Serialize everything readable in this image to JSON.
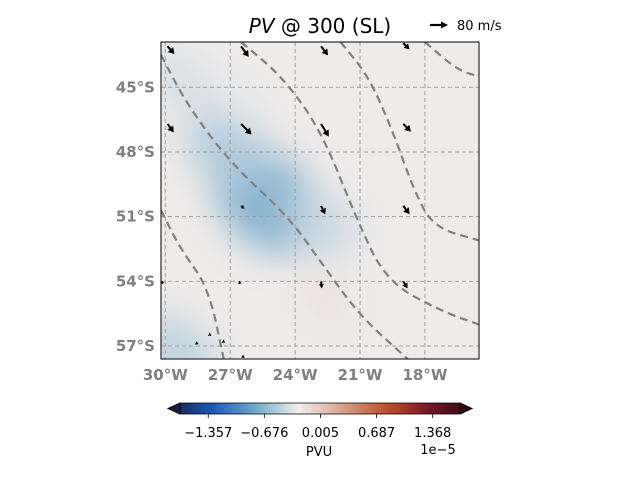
{
  "chart_data": {
    "type": "heatmap",
    "title_var": "PV",
    "title_rest": " @ 300 (SL)",
    "reference_vector": {
      "label": "80 m/s"
    },
    "xlim": [
      -30.2,
      -15.5
    ],
    "ylim": [
      -57.6,
      -42.9
    ],
    "x_ticks": [
      {
        "value": -30,
        "label": "30°W"
      },
      {
        "value": -27,
        "label": "27°W"
      },
      {
        "value": -24,
        "label": "24°W"
      },
      {
        "value": -21,
        "label": "21°W"
      },
      {
        "value": -18,
        "label": "18°W"
      }
    ],
    "y_ticks": [
      {
        "value": -45,
        "label": "45°S"
      },
      {
        "value": -48,
        "label": "48°S"
      },
      {
        "value": -51,
        "label": "51°S"
      },
      {
        "value": -54,
        "label": "54°S"
      },
      {
        "value": -57,
        "label": "57°S"
      }
    ],
    "grid": true,
    "colorbar": {
      "label": "PVU",
      "scale_label": "1e−5",
      "ticks": [
        "−1.357",
        "−0.676",
        "0.005",
        "0.687",
        "1.368"
      ],
      "tick_values": [
        -1.357,
        -0.676,
        0.005,
        0.687,
        1.368
      ],
      "range": [
        -1.7,
        1.7
      ],
      "extend": "both",
      "colors": [
        "#1a1a4a",
        "#1a57b8",
        "#6fa7c9",
        "#f2efee",
        "#d9a190",
        "#c0512b",
        "#7a1428",
        "#2b0a10"
      ]
    },
    "pv_anomalies": [
      {
        "lon": -25.2,
        "lat": -50.3,
        "value": -0.72
      },
      {
        "lon": -27.0,
        "lat": -48.0,
        "value": -0.5
      },
      {
        "lon": -22.8,
        "lat": -51.3,
        "value": -0.4
      },
      {
        "lon": -26.5,
        "lat": -45.5,
        "value": -0.28
      },
      {
        "lon": -29.3,
        "lat": -44.8,
        "value": -0.35
      },
      {
        "lon": -29.5,
        "lat": -57.3,
        "value": -0.45
      },
      {
        "lon": -22.5,
        "lat": -54.8,
        "value": -0.12
      }
    ],
    "contours": [
      [
        [
          -30.2,
          -43.5
        ],
        [
          -29.0,
          -45.8
        ],
        [
          -27.0,
          -48.5
        ],
        [
          -24.3,
          -51.0
        ],
        [
          -22.6,
          -53.4
        ],
        [
          -21.0,
          -55.6
        ],
        [
          -18.8,
          -57.6
        ]
      ],
      [
        [
          -26.5,
          -42.9
        ],
        [
          -24.6,
          -44.5
        ],
        [
          -22.8,
          -47.0
        ],
        [
          -21.2,
          -51.0
        ],
        [
          -19.8,
          -54.0
        ],
        [
          -17.2,
          -55.4
        ],
        [
          -15.5,
          -56.0
        ]
      ],
      [
        [
          -21.9,
          -42.9
        ],
        [
          -20.6,
          -44.5
        ],
        [
          -19.5,
          -47.0
        ],
        [
          -18.5,
          -49.8
        ],
        [
          -17.6,
          -51.5
        ],
        [
          -15.5,
          -52.1
        ]
      ],
      [
        [
          -18.0,
          -42.9
        ],
        [
          -16.5,
          -44.2
        ],
        [
          -15.5,
          -44.5
        ]
      ],
      [
        [
          -30.2,
          -50.7
        ],
        [
          -29.3,
          -52.5
        ],
        [
          -28.0,
          -54.3
        ],
        [
          -27.3,
          -57.6
        ]
      ]
    ],
    "wind_vectors": [
      {
        "lon": -29.9,
        "lat": -43.1,
        "u": 20,
        "v": -22
      },
      {
        "lon": -26.5,
        "lat": -43.1,
        "u": 22,
        "v": -30
      },
      {
        "lon": -22.8,
        "lat": -43.1,
        "u": 20,
        "v": -26
      },
      {
        "lon": -19.0,
        "lat": -42.95,
        "u": 18,
        "v": -18
      },
      {
        "lon": -29.9,
        "lat": -46.7,
        "u": 18,
        "v": -24
      },
      {
        "lon": -26.5,
        "lat": -46.7,
        "u": 30,
        "v": -30
      },
      {
        "lon": -22.8,
        "lat": -46.7,
        "u": 22,
        "v": -36
      },
      {
        "lon": -19.0,
        "lat": -46.7,
        "u": 22,
        "v": -22
      },
      {
        "lon": -26.5,
        "lat": -50.5,
        "u": 10,
        "v": -8
      },
      {
        "lon": -22.8,
        "lat": -50.5,
        "u": 12,
        "v": -24
      },
      {
        "lon": -19.0,
        "lat": -50.5,
        "u": 18,
        "v": -24
      },
      {
        "lon": -30.1,
        "lat": -54.0,
        "u": -6,
        "v": -8
      },
      {
        "lon": -26.5,
        "lat": -54.0,
        "u": -8,
        "v": -8
      },
      {
        "lon": -22.8,
        "lat": -54.0,
        "u": 2,
        "v": -20
      },
      {
        "lon": -19.0,
        "lat": -54.0,
        "u": 12,
        "v": -20
      },
      {
        "lon": -27.3,
        "lat": -56.8,
        "u": 4,
        "v": -3
      },
      {
        "lon": -26.4,
        "lat": -57.5,
        "u": 4,
        "v": -3
      },
      {
        "lon": -27.9,
        "lat": -56.5,
        "u": 2,
        "v": -1
      },
      {
        "lon": -28.5,
        "lat": -56.9,
        "u": 2,
        "v": -1
      }
    ]
  }
}
